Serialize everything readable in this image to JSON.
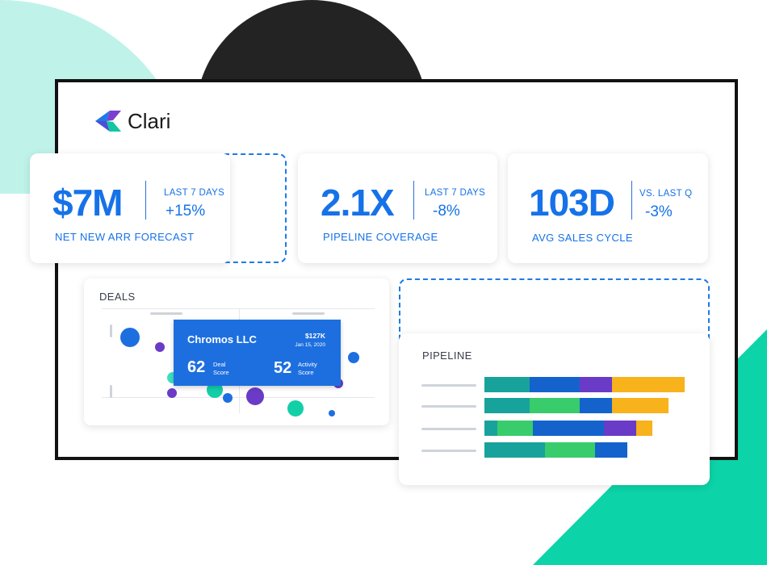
{
  "brand": {
    "name": "Clari"
  },
  "metrics": [
    {
      "value": "$7M",
      "period": "LAST 7 DAYS",
      "change": "+15%",
      "label": "NET NEW ARR FORECAST"
    },
    {
      "value": "2.1X",
      "period": "LAST 7 DAYS",
      "change": "-8%",
      "label": "PIPELINE COVERAGE"
    },
    {
      "value": "103D",
      "period": "VS. LAST Q",
      "change": "-3%",
      "label": "AVG SALES CYCLE"
    }
  ],
  "deals": {
    "title": "DEALS",
    "tooltip": {
      "company": "Chromos LLC",
      "amount": "$127K",
      "date": "Jan 15, 2020",
      "deal_score": "62",
      "deal_score_label_1": "Deal",
      "deal_score_label_2": "Score",
      "activity_score": "52",
      "activity_score_label_1": "Activity",
      "activity_score_label_2": "Score"
    }
  },
  "pipeline": {
    "title": "PIPELINE",
    "colors": {
      "teal": "#17a39b",
      "blue": "#1463cc",
      "purple": "#6a3bc7",
      "yellow": "#f7b21c",
      "green": "#38cc6d"
    }
  },
  "decor_colors": {
    "mint": "#bff3e9",
    "dark": "#232323",
    "green": "#0cd3a8",
    "accent": "#1672e8"
  }
}
